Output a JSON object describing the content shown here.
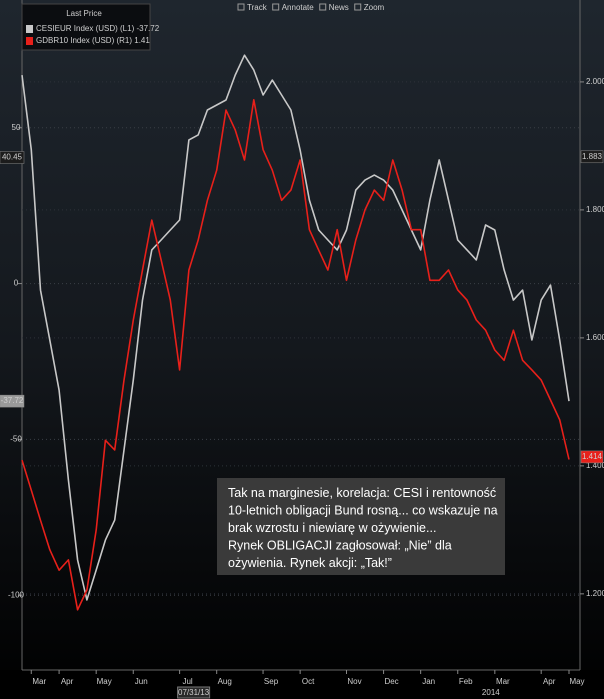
{
  "chart_data": {
    "type": "line",
    "legend_title": "Last Price",
    "toolbar": [
      "Track",
      "Annotate",
      "News",
      "Zoom"
    ],
    "categories": [
      null,
      "Mar",
      null,
      null,
      "Apr",
      null,
      null,
      null,
      "May",
      null,
      null,
      null,
      "Jun",
      null,
      null,
      null,
      null,
      "Jul",
      null,
      null,
      null,
      "Aug",
      null,
      null,
      null,
      null,
      "Sep",
      null,
      null,
      null,
      "Oct",
      null,
      null,
      null,
      null,
      "Nov",
      null,
      null,
      null,
      "Dec",
      null,
      null,
      null,
      "Jan",
      null,
      null,
      null,
      "Feb",
      null,
      null,
      null,
      "Mar",
      null,
      null,
      null,
      null,
      "Apr",
      null,
      null,
      "May"
    ],
    "year_label": "2014",
    "crosshair_date": "07/31/13",
    "series": [
      {
        "name": "CESIEUR Index (USD) (L1) -37.72",
        "color": "#c8c8c8",
        "axis": "y",
        "values": [
          66.9,
          42.9,
          -2.1,
          -18.1,
          -34.2,
          -63.0,
          -88.7,
          -101.5,
          -91.9,
          -82.3,
          -75.9,
          -53.4,
          -30.9,
          -5.3,
          10.8,
          14.0,
          17.2,
          20.4,
          46.1,
          47.7,
          55.7,
          57.3,
          58.9,
          66.9,
          73.3,
          68.5,
          60.5,
          65.3,
          60.5,
          55.7,
          42.9,
          26.8,
          17.2,
          14.0,
          10.8,
          17.2,
          30.0,
          33.2,
          34.8,
          33.2,
          30.0,
          23.6,
          17.2,
          10.8,
          26.8,
          39.7,
          26.8,
          14.0,
          10.8,
          7.6,
          18.8,
          17.2,
          4.4,
          -5.3,
          -2.1,
          -18.1,
          -5.3,
          -0.5,
          -18.1,
          -37.72
        ]
      },
      {
        "name": "GDBR10 Index (USD) (R1) 1.41",
        "color": "#e8201a",
        "axis": "y2",
        "values": [
          1.409,
          1.362,
          1.315,
          1.269,
          1.237,
          1.253,
          1.175,
          1.206,
          1.3,
          1.44,
          1.425,
          1.534,
          1.628,
          1.706,
          1.784,
          1.722,
          1.659,
          1.55,
          1.706,
          1.753,
          1.815,
          1.862,
          1.956,
          1.925,
          1.878,
          1.972,
          1.894,
          1.862,
          1.815,
          1.831,
          1.878,
          1.769,
          1.737,
          1.706,
          1.769,
          1.69,
          1.753,
          1.8,
          1.831,
          1.815,
          1.878,
          1.831,
          1.769,
          1.769,
          1.69,
          1.69,
          1.706,
          1.675,
          1.659,
          1.628,
          1.612,
          1.581,
          1.565,
          1.612,
          1.565,
          1.55,
          1.534,
          1.503,
          1.472,
          1.41
        ]
      }
    ],
    "ylim": [
      -124,
      91
    ],
    "yticks": [
      50,
      0,
      -50,
      -100
    ],
    "y2lim": [
      1.081,
      2.128
    ],
    "y2ticks": [
      {
        "value": 2.0,
        "label": "2.000"
      },
      {
        "value": 1.8,
        "label": "1.800"
      },
      {
        "value": 1.6,
        "label": "1.600"
      },
      {
        "value": 1.4,
        "label": "1.400"
      },
      {
        "value": 1.2,
        "label": "1.200"
      }
    ],
    "value_markers": [
      {
        "axis": "y",
        "value": 40.45,
        "label": "40.45",
        "color": "#1c1c1c"
      },
      {
        "axis": "y",
        "value": -37.72,
        "label": "-37.72",
        "color": "#9a9a9a"
      },
      {
        "axis": "y2",
        "value": 1.883,
        "label": "1.883",
        "color": "#1c1c1c"
      },
      {
        "axis": "y2",
        "value": 1.414,
        "label": "1.414",
        "color": "#e8201a"
      }
    ],
    "grid": true,
    "annotation": [
      "Tak na marginesie, korelacja: CESI i rentowność",
      "10-letnich obligacji Bund rosną... co wskazuje na",
      "brak wzrostu i niewiarę w ożywienie...",
      "Rynek OBLIGACJI zagłosował: „Nie” dla",
      "ożywienia. Rynek akcji: „Tak!”"
    ]
  }
}
